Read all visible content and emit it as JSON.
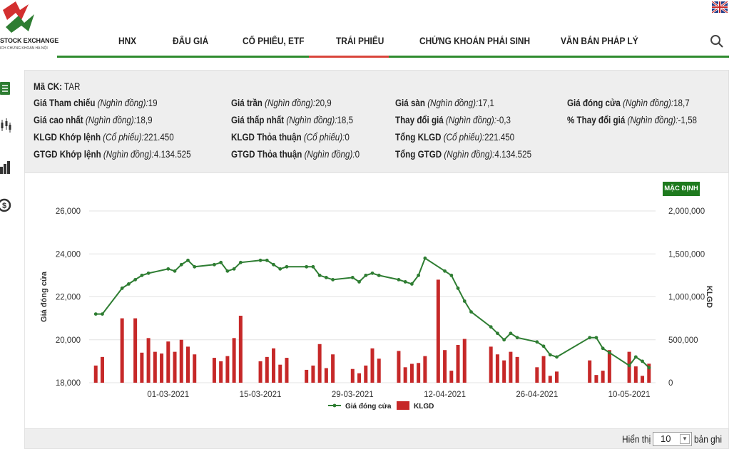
{
  "header": {
    "logo_title": "STOCK EXCHANGE",
    "logo_sub": "ICH CHỨNG KHOÁN HÀ NỘI",
    "nav": [
      "HNX",
      "ĐẤU GIÁ",
      "CỔ PHIẾU, ETF",
      "TRÁI PHIẾU",
      "CHỨNG KHOÁN PHÁI SINH",
      "VĂN BẢN PHÁP LÝ"
    ],
    "active_nav": "TRÁI PHIẾU"
  },
  "info": {
    "code_label": "Mã CK:",
    "code_value": "TAR",
    "rows": [
      [
        {
          "label": "Giá Tham chiếu",
          "unit": "(Nghìn đồng):",
          "value": "19"
        },
        {
          "label": "Giá trần",
          "unit": "(Nghìn đồng):",
          "value": "20,9"
        },
        {
          "label": "Giá sàn",
          "unit": "(Nghìn đồng):",
          "value": "17,1"
        },
        {
          "label": "Giá đóng cửa",
          "unit": "(Nghìn đồng):",
          "value": "18,7"
        }
      ],
      [
        {
          "label": "Giá cao nhất",
          "unit": "(Nghìn đồng):",
          "value": "18,9"
        },
        {
          "label": "Giá thấp nhất",
          "unit": "(Nghìn đồng):",
          "value": "18,5"
        },
        {
          "label": "Thay đổi giá",
          "unit": "(Nghìn đồng):",
          "value": "-0,3"
        },
        {
          "label": "% Thay đổi giá",
          "unit": "(Nghìn đồng):",
          "value": "-1,58"
        }
      ],
      [
        {
          "label": "KLGD Khớp lệnh",
          "unit": "(Cổ phiếu):",
          "value": "221.450"
        },
        {
          "label": "KLGD Thỏa thuận",
          "unit": "(Cổ phiếu):",
          "value": "0"
        },
        {
          "label": "Tổng KLGD",
          "unit": "(Cổ phiếu):",
          "value": "221.450"
        }
      ],
      [
        {
          "label": "GTGD Khớp lệnh",
          "unit": "(Nghìn đồng):",
          "value": "4.134.525"
        },
        {
          "label": "GTGD Thỏa thuận",
          "unit": "(Nghìn đồng):",
          "value": "0"
        },
        {
          "label": "Tổng GTGD",
          "unit": "(Nghìn đồng):",
          "value": "4.134.525"
        }
      ]
    ]
  },
  "default_button": "MẶC ĐỊNH",
  "chart_data": {
    "type": "line+bar",
    "ylabel": "Giá đóng cửa",
    "y2label": "KLGD",
    "ylim": [
      18000,
      26000
    ],
    "y2lim": [
      0,
      2000000
    ],
    "yticks": [
      "26,000",
      "24,000",
      "22,000",
      "20,000",
      "18,000"
    ],
    "y2ticks": [
      "2,000,000",
      "1,500,000",
      "1,000,000",
      "500,000",
      "0"
    ],
    "xticks": [
      "01-03-2021",
      "15-03-2021",
      "29-03-2021",
      "12-04-2021",
      "26-04-2021",
      "10-05-2021"
    ],
    "grid": true,
    "legend_position": "bottom",
    "series": [
      {
        "name": "Giá đóng cửa",
        "color": "#2e7d32",
        "type": "line",
        "values": [
          {
            "x": "2021-02-18",
            "y": 21200
          },
          {
            "x": "2021-02-19",
            "y": 21200
          },
          {
            "x": "2021-02-22",
            "y": 22400
          },
          {
            "x": "2021-02-23",
            "y": 22600
          },
          {
            "x": "2021-02-24",
            "y": 22800
          },
          {
            "x": "2021-02-25",
            "y": 23000
          },
          {
            "x": "2021-02-26",
            "y": 23100
          },
          {
            "x": "2021-03-01",
            "y": 23300
          },
          {
            "x": "2021-03-02",
            "y": 23200
          },
          {
            "x": "2021-03-03",
            "y": 23500
          },
          {
            "x": "2021-03-04",
            "y": 23700
          },
          {
            "x": "2021-03-05",
            "y": 23400
          },
          {
            "x": "2021-03-08",
            "y": 23500
          },
          {
            "x": "2021-03-09",
            "y": 23600
          },
          {
            "x": "2021-03-10",
            "y": 23200
          },
          {
            "x": "2021-03-11",
            "y": 23300
          },
          {
            "x": "2021-03-12",
            "y": 23600
          },
          {
            "x": "2021-03-15",
            "y": 23700
          },
          {
            "x": "2021-03-16",
            "y": 23700
          },
          {
            "x": "2021-03-17",
            "y": 23500
          },
          {
            "x": "2021-03-18",
            "y": 23300
          },
          {
            "x": "2021-03-19",
            "y": 23400
          },
          {
            "x": "2021-03-22",
            "y": 23400
          },
          {
            "x": "2021-03-23",
            "y": 23400
          },
          {
            "x": "2021-03-24",
            "y": 23000
          },
          {
            "x": "2021-03-25",
            "y": 22900
          },
          {
            "x": "2021-03-26",
            "y": 22800
          },
          {
            "x": "2021-03-29",
            "y": 22900
          },
          {
            "x": "2021-03-30",
            "y": 22700
          },
          {
            "x": "2021-03-31",
            "y": 23000
          },
          {
            "x": "2021-04-01",
            "y": 23100
          },
          {
            "x": "2021-04-02",
            "y": 23000
          },
          {
            "x": "2021-04-05",
            "y": 22800
          },
          {
            "x": "2021-04-06",
            "y": 22700
          },
          {
            "x": "2021-04-07",
            "y": 22600
          },
          {
            "x": "2021-04-08",
            "y": 23000
          },
          {
            "x": "2021-04-09",
            "y": 23800
          },
          {
            "x": "2021-04-12",
            "y": 23200
          },
          {
            "x": "2021-04-13",
            "y": 23000
          },
          {
            "x": "2021-04-14",
            "y": 22400
          },
          {
            "x": "2021-04-15",
            "y": 21800
          },
          {
            "x": "2021-04-16",
            "y": 21300
          },
          {
            "x": "2021-04-19",
            "y": 20600
          },
          {
            "x": "2021-04-20",
            "y": 20300
          },
          {
            "x": "2021-04-21",
            "y": 20000
          },
          {
            "x": "2021-04-22",
            "y": 20300
          },
          {
            "x": "2021-04-23",
            "y": 20100
          },
          {
            "x": "2021-04-26",
            "y": 19900
          },
          {
            "x": "2021-04-27",
            "y": 19700
          },
          {
            "x": "2021-04-28",
            "y": 19300
          },
          {
            "x": "2021-04-29",
            "y": 19200
          },
          {
            "x": "2021-05-04",
            "y": 20100
          },
          {
            "x": "2021-05-05",
            "y": 20100
          },
          {
            "x": "2021-05-06",
            "y": 19600
          },
          {
            "x": "2021-05-07",
            "y": 19400
          },
          {
            "x": "2021-05-10",
            "y": 18800
          },
          {
            "x": "2021-05-11",
            "y": 19200
          },
          {
            "x": "2021-05-12",
            "y": 19000
          },
          {
            "x": "2021-05-13",
            "y": 18700
          }
        ]
      },
      {
        "name": "KLGD",
        "color": "#c62828",
        "type": "bar",
        "values": [
          {
            "x": "2021-02-18",
            "y": 200000
          },
          {
            "x": "2021-02-19",
            "y": 300000
          },
          {
            "x": "2021-02-22",
            "y": 750000
          },
          {
            "x": "2021-02-24",
            "y": 750000
          },
          {
            "x": "2021-02-25",
            "y": 350000
          },
          {
            "x": "2021-02-26",
            "y": 520000
          },
          {
            "x": "2021-02-27",
            "y": 360000
          },
          {
            "x": "2021-02-28",
            "y": 340000
          },
          {
            "x": "2021-03-01",
            "y": 480000
          },
          {
            "x": "2021-03-02",
            "y": 360000
          },
          {
            "x": "2021-03-03",
            "y": 500000
          },
          {
            "x": "2021-03-04",
            "y": 420000
          },
          {
            "x": "2021-03-05",
            "y": 330000
          },
          {
            "x": "2021-03-08",
            "y": 290000
          },
          {
            "x": "2021-03-09",
            "y": 250000
          },
          {
            "x": "2021-03-10",
            "y": 310000
          },
          {
            "x": "2021-03-11",
            "y": 520000
          },
          {
            "x": "2021-03-12",
            "y": 780000
          },
          {
            "x": "2021-03-15",
            "y": 250000
          },
          {
            "x": "2021-03-16",
            "y": 300000
          },
          {
            "x": "2021-03-17",
            "y": 400000
          },
          {
            "x": "2021-03-18",
            "y": 210000
          },
          {
            "x": "2021-03-19",
            "y": 290000
          },
          {
            "x": "2021-03-22",
            "y": 150000
          },
          {
            "x": "2021-03-23",
            "y": 200000
          },
          {
            "x": "2021-03-24",
            "y": 450000
          },
          {
            "x": "2021-03-25",
            "y": 170000
          },
          {
            "x": "2021-03-26",
            "y": 330000
          },
          {
            "x": "2021-03-29",
            "y": 160000
          },
          {
            "x": "2021-03-30",
            "y": 110000
          },
          {
            "x": "2021-03-31",
            "y": 200000
          },
          {
            "x": "2021-04-01",
            "y": 400000
          },
          {
            "x": "2021-04-02",
            "y": 280000
          },
          {
            "x": "2021-04-05",
            "y": 370000
          },
          {
            "x": "2021-04-06",
            "y": 180000
          },
          {
            "x": "2021-04-07",
            "y": 220000
          },
          {
            "x": "2021-04-08",
            "y": 230000
          },
          {
            "x": "2021-04-09",
            "y": 310000
          },
          {
            "x": "2021-04-11",
            "y": 1200000
          },
          {
            "x": "2021-04-12",
            "y": 380000
          },
          {
            "x": "2021-04-13",
            "y": 140000
          },
          {
            "x": "2021-04-14",
            "y": 440000
          },
          {
            "x": "2021-04-15",
            "y": 510000
          },
          {
            "x": "2021-04-19",
            "y": 420000
          },
          {
            "x": "2021-04-20",
            "y": 330000
          },
          {
            "x": "2021-04-21",
            "y": 260000
          },
          {
            "x": "2021-04-22",
            "y": 360000
          },
          {
            "x": "2021-04-23",
            "y": 300000
          },
          {
            "x": "2021-04-26",
            "y": 180000
          },
          {
            "x": "2021-04-27",
            "y": 310000
          },
          {
            "x": "2021-04-28",
            "y": 80000
          },
          {
            "x": "2021-04-29",
            "y": 130000
          },
          {
            "x": "2021-05-04",
            "y": 260000
          },
          {
            "x": "2021-05-05",
            "y": 90000
          },
          {
            "x": "2021-05-06",
            "y": 140000
          },
          {
            "x": "2021-05-07",
            "y": 380000
          },
          {
            "x": "2021-05-10",
            "y": 360000
          },
          {
            "x": "2021-05-11",
            "y": 190000
          },
          {
            "x": "2021-05-12",
            "y": 80000
          },
          {
            "x": "2021-05-13",
            "y": 221450
          }
        ]
      }
    ]
  },
  "footer": {
    "show_label": "Hiển thị",
    "page_size": "10",
    "records_label": "bản ghi"
  }
}
